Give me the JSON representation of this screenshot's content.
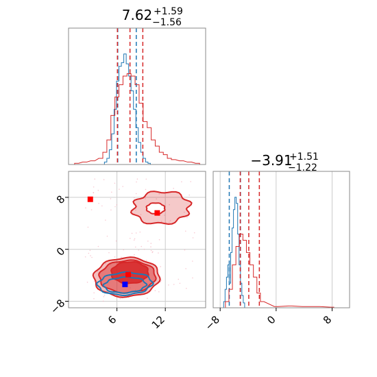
{
  "colors": {
    "blue": "#1f77b4",
    "red": "#d62728",
    "grid": "#cccccc",
    "frame": "#888888"
  },
  "chart_data": [
    {
      "panel": "top-left",
      "type": "histogram",
      "title": {
        "main": "7.62",
        "sup": "+1.59",
        "sub": "−1.56"
      },
      "xlim": [
        0,
        17
      ],
      "ylim": [
        0,
        1
      ],
      "grid": true,
      "series": [
        {
          "color": "blue",
          "bins": [
            [
              4.6,
              0.02
            ],
            [
              4.9,
              0.05
            ],
            [
              5.2,
              0.12
            ],
            [
              5.5,
              0.25
            ],
            [
              5.8,
              0.45
            ],
            [
              6.1,
              0.68
            ],
            [
              6.4,
              0.8
            ],
            [
              6.7,
              0.83
            ],
            [
              7.0,
              0.9
            ],
            [
              7.3,
              0.82
            ],
            [
              7.6,
              0.72
            ],
            [
              7.9,
              0.6
            ],
            [
              8.2,
              0.45
            ],
            [
              8.5,
              0.3
            ],
            [
              8.8,
              0.18
            ],
            [
              9.1,
              0.1
            ],
            [
              9.4,
              0.05
            ],
            [
              9.7,
              0.02
            ],
            [
              10.0,
              0.01
            ]
          ],
          "width": 0.3,
          "quantiles": [
            6.1,
            8.4
          ]
        },
        {
          "color": "red",
          "bins": [
            [
              1,
              0.01
            ],
            [
              2,
              0.02
            ],
            [
              3,
              0.03
            ],
            [
              4,
              0.05
            ],
            [
              4.5,
              0.1
            ],
            [
              5,
              0.2
            ],
            [
              5.5,
              0.4
            ],
            [
              6,
              0.55
            ],
            [
              6.5,
              0.65
            ],
            [
              7,
              0.72
            ],
            [
              7.5,
              0.74
            ],
            [
              8,
              0.72
            ],
            [
              8.5,
              0.65
            ],
            [
              9,
              0.5
            ],
            [
              9.5,
              0.35
            ],
            [
              10,
              0.3
            ],
            [
              10.5,
              0.2
            ],
            [
              11,
              0.15
            ],
            [
              11.5,
              0.1
            ],
            [
              12,
              0.08
            ],
            [
              12.5,
              0.05
            ],
            [
              13,
              0.04
            ],
            [
              14,
              0.03
            ],
            [
              15,
              0.02
            ],
            [
              16,
              0.01
            ]
          ],
          "width": 0.5,
          "quantiles": [
            6.06,
            7.62,
            9.21
          ]
        }
      ]
    },
    {
      "panel": "bottom-right",
      "type": "histogram",
      "title": {
        "main": "−3.91",
        "sup": "+1.51",
        "sub": "−1.22"
      },
      "xlim": [
        -9,
        10.5
      ],
      "ylim": [
        0,
        1
      ],
      "xticks": [
        "−8",
        "0",
        "8"
      ],
      "xtick_values": [
        -8,
        0,
        8
      ],
      "grid": true,
      "series": [
        {
          "color": "blue",
          "bins": [
            [
              -7.4,
              0.05
            ],
            [
              -7.2,
              0.15
            ],
            [
              -7.0,
              0.25
            ],
            [
              -6.8,
              0.35
            ],
            [
              -6.6,
              0.2
            ],
            [
              -6.4,
              0.45
            ],
            [
              -6.2,
              0.65
            ],
            [
              -6.0,
              0.8
            ],
            [
              -5.8,
              0.9
            ],
            [
              -5.6,
              0.85
            ],
            [
              -5.4,
              0.6
            ],
            [
              -5.2,
              0.35
            ],
            [
              -5.0,
              0.2
            ],
            [
              -4.8,
              0.1
            ],
            [
              -4.6,
              0.04
            ]
          ],
          "width": 0.2,
          "quantiles": [
            -6.7,
            -5.1
          ]
        },
        {
          "color": "red",
          "bins": [
            [
              -7.0,
              0.05
            ],
            [
              -6.5,
              0.15
            ],
            [
              -6.0,
              0.35
            ],
            [
              -5.5,
              0.5
            ],
            [
              -5.0,
              0.6
            ],
            [
              -4.5,
              0.55
            ],
            [
              -4.0,
              0.45
            ],
            [
              -3.5,
              0.35
            ],
            [
              -3.0,
              0.25
            ],
            [
              -2.5,
              0.12
            ],
            [
              -2.0,
              0.05
            ],
            [
              0,
              0.01
            ],
            [
              2,
              0.015
            ],
            [
              4,
              0.01
            ],
            [
              6,
              0.01
            ],
            [
              8,
              0.005
            ]
          ],
          "width": 0.5,
          "quantiles": [
            -5.13,
            -3.91,
            -2.4
          ]
        }
      ]
    },
    {
      "panel": "bottom-left",
      "type": "contour",
      "xlim": [
        0,
        17
      ],
      "ylim": [
        -9,
        12
      ],
      "xticks": [
        "6",
        "12"
      ],
      "xtick_values": [
        6,
        12
      ],
      "yticks": [
        "−8",
        "0",
        "8"
      ],
      "ytick_values": [
        -8,
        0,
        8
      ],
      "grid": true,
      "red_markers": [
        [
          2.7,
          7.7
        ],
        [
          11,
          5.6
        ],
        [
          7.4,
          -3.9
        ]
      ],
      "blue_markers": [
        [
          7.0,
          -5.4
        ]
      ]
    }
  ]
}
